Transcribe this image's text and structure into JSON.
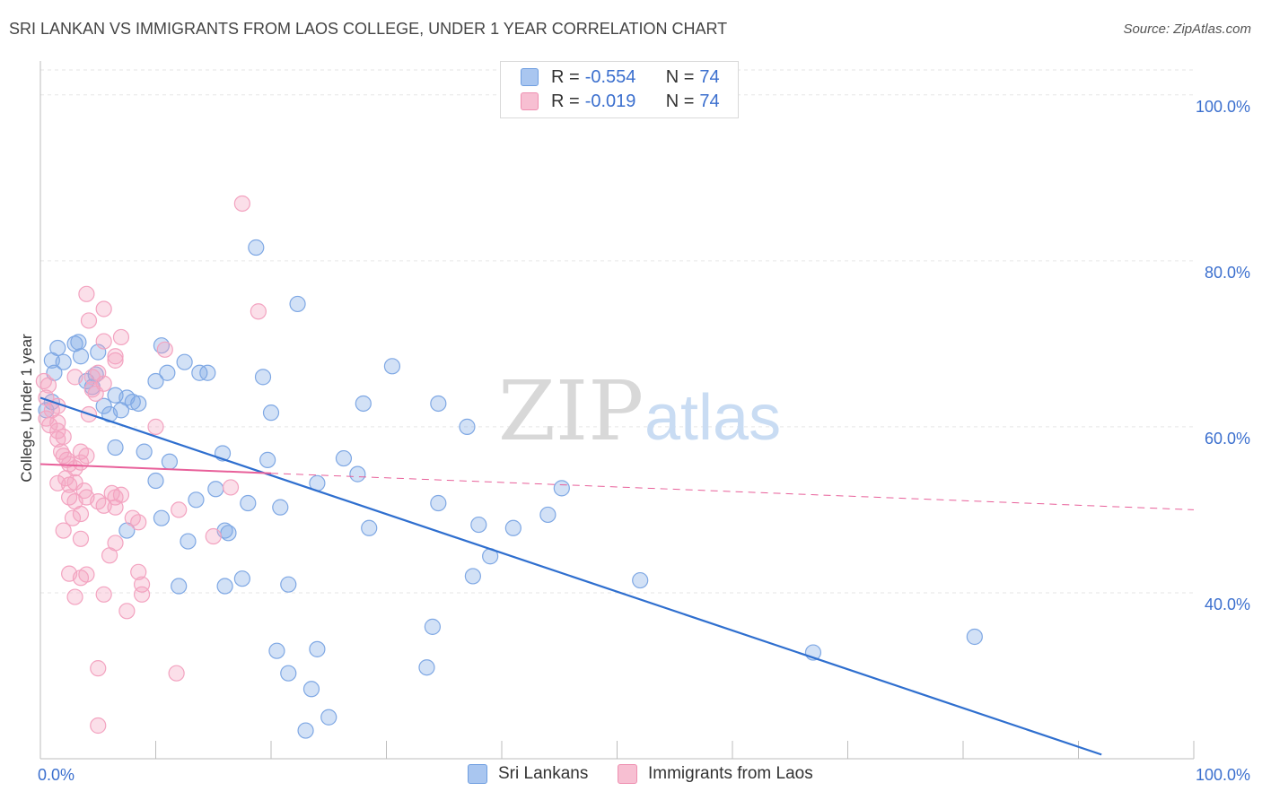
{
  "header": {
    "title": "SRI LANKAN VS IMMIGRANTS FROM LAOS COLLEGE, UNDER 1 YEAR CORRELATION CHART",
    "source": "Source: ZipAtlas.com"
  },
  "watermark": {
    "zip": "ZIP",
    "atlas": "atlas"
  },
  "stats": [
    {
      "r_label": "R =",
      "r_value": "-0.554",
      "n_label": "N =",
      "n_value": "74",
      "color": "#a9c6f0",
      "border": "#6f9ee0"
    },
    {
      "r_label": "R =",
      "r_value": "-0.019",
      "n_label": "N =",
      "n_value": "74",
      "color": "#f7bfd2",
      "border": "#ee8fb0"
    }
  ],
  "chart_data": {
    "type": "scatter",
    "title": "SRI LANKAN VS IMMIGRANTS FROM LAOS COLLEGE, UNDER 1 YEAR CORRELATION CHART",
    "xlabel": "",
    "ylabel": "College, Under 1 year",
    "xlim": [
      0,
      100
    ],
    "ylim": [
      20,
      103
    ],
    "x_tick_labels": [
      "0.0%",
      "100.0%"
    ],
    "y_ticks": [
      40,
      60,
      80,
      100
    ],
    "y_tick_labels": [
      "40.0%",
      "60.0%",
      "80.0%",
      "100.0%"
    ],
    "grid": true,
    "legend_position": "bottom-center",
    "series": [
      {
        "name": "Sri Lankans",
        "color": "#7fa8e4",
        "line_color": "#2f6fcf",
        "trend": {
          "x": [
            0,
            92
          ],
          "y": [
            63.5,
            20.5
          ],
          "dashed_extension": false
        },
        "points": [
          [
            1.0,
            68.0
          ],
          [
            1.5,
            69.5
          ],
          [
            2.0,
            67.8
          ],
          [
            1.2,
            66.5
          ],
          [
            0.5,
            62.0
          ],
          [
            1.0,
            63.0
          ],
          [
            3.0,
            70.0
          ],
          [
            3.3,
            70.2
          ],
          [
            3.5,
            68.5
          ],
          [
            5.0,
            69.0
          ],
          [
            4.0,
            65.5
          ],
          [
            4.5,
            64.8
          ],
          [
            4.8,
            66.3
          ],
          [
            5.5,
            62.5
          ],
          [
            6.0,
            61.5
          ],
          [
            6.5,
            63.8
          ],
          [
            7.0,
            62.0
          ],
          [
            7.5,
            63.5
          ],
          [
            8.0,
            63.0
          ],
          [
            8.5,
            62.8
          ],
          [
            10.0,
            65.5
          ],
          [
            10.5,
            69.8
          ],
          [
            12.5,
            67.8
          ],
          [
            13.8,
            66.5
          ],
          [
            14.5,
            66.5
          ],
          [
            11.0,
            66.5
          ],
          [
            19.3,
            66.0
          ],
          [
            22.3,
            74.8
          ],
          [
            18.7,
            81.6
          ],
          [
            20.0,
            61.7
          ],
          [
            6.5,
            57.5
          ],
          [
            9.0,
            57.0
          ],
          [
            11.2,
            55.8
          ],
          [
            15.8,
            56.8
          ],
          [
            19.7,
            56.0
          ],
          [
            10.0,
            53.5
          ],
          [
            15.2,
            52.5
          ],
          [
            24.0,
            53.2
          ],
          [
            26.3,
            56.2
          ],
          [
            27.5,
            54.3
          ],
          [
            13.5,
            51.2
          ],
          [
            18.0,
            50.8
          ],
          [
            20.8,
            50.3
          ],
          [
            10.5,
            49.0
          ],
          [
            7.5,
            47.5
          ],
          [
            16.0,
            47.5
          ],
          [
            16.3,
            47.2
          ],
          [
            12.8,
            46.2
          ],
          [
            28.5,
            47.8
          ],
          [
            34.5,
            50.8
          ],
          [
            38.0,
            48.2
          ],
          [
            41.0,
            47.8
          ],
          [
            44.0,
            49.4
          ],
          [
            39.0,
            44.4
          ],
          [
            17.5,
            41.7
          ],
          [
            21.5,
            41.0
          ],
          [
            12.0,
            40.8
          ],
          [
            16.0,
            40.8
          ],
          [
            37.5,
            42.0
          ],
          [
            52.0,
            41.5
          ],
          [
            34.5,
            62.8
          ],
          [
            28.0,
            62.8
          ],
          [
            30.5,
            67.3
          ],
          [
            37.0,
            60.0
          ],
          [
            45.2,
            52.6
          ],
          [
            34.0,
            35.9
          ],
          [
            20.5,
            33.0
          ],
          [
            24.0,
            33.2
          ],
          [
            21.5,
            30.3
          ],
          [
            23.5,
            28.4
          ],
          [
            33.5,
            31.0
          ],
          [
            25.0,
            25.0
          ],
          [
            23.0,
            23.4
          ],
          [
            67.0,
            32.8
          ],
          [
            81.0,
            34.7
          ]
        ]
      },
      {
        "name": "Immigrants from Laos",
        "color": "#f3a3c0",
        "line_color": "#e8609a",
        "trend": {
          "x": [
            0,
            100
          ],
          "y": [
            55.5,
            50.0
          ],
          "solid_until_x": 20,
          "dashed_extension": true
        },
        "points": [
          [
            0.3,
            65.5
          ],
          [
            0.7,
            65.0
          ],
          [
            0.5,
            63.5
          ],
          [
            1.0,
            62.0
          ],
          [
            0.8,
            60.2
          ],
          [
            1.5,
            60.5
          ],
          [
            1.5,
            58.5
          ],
          [
            1.8,
            57.0
          ],
          [
            1.5,
            59.5
          ],
          [
            2.0,
            56.5
          ],
          [
            2.3,
            56.0
          ],
          [
            2.5,
            55.5
          ],
          [
            2.2,
            53.8
          ],
          [
            3.0,
            53.3
          ],
          [
            2.5,
            53.0
          ],
          [
            1.5,
            53.2
          ],
          [
            3.0,
            55.0
          ],
          [
            3.5,
            57.0
          ],
          [
            4.0,
            56.5
          ],
          [
            3.5,
            55.7
          ],
          [
            4.0,
            51.5
          ],
          [
            3.0,
            51.0
          ],
          [
            2.5,
            51.5
          ],
          [
            2.8,
            49.0
          ],
          [
            3.5,
            49.5
          ],
          [
            5.0,
            51.0
          ],
          [
            5.5,
            50.5
          ],
          [
            6.5,
            51.5
          ],
          [
            6.2,
            52.0
          ],
          [
            7.0,
            51.8
          ],
          [
            6.5,
            50.3
          ],
          [
            8.0,
            49.0
          ],
          [
            8.5,
            48.5
          ],
          [
            2.0,
            47.5
          ],
          [
            3.5,
            46.5
          ],
          [
            6.5,
            46.0
          ],
          [
            6.0,
            44.5
          ],
          [
            8.5,
            42.5
          ],
          [
            2.5,
            42.3
          ],
          [
            3.5,
            41.8
          ],
          [
            4.0,
            42.2
          ],
          [
            8.8,
            41.0
          ],
          [
            5.5,
            39.8
          ],
          [
            8.8,
            39.8
          ],
          [
            3.0,
            39.5
          ],
          [
            7.5,
            37.8
          ],
          [
            15.0,
            46.8
          ],
          [
            16.5,
            52.7
          ],
          [
            5.5,
            74.2
          ],
          [
            4.0,
            76.0
          ],
          [
            4.2,
            72.8
          ],
          [
            7.0,
            70.8
          ],
          [
            5.5,
            70.3
          ],
          [
            10.8,
            69.3
          ],
          [
            18.9,
            73.9
          ],
          [
            17.5,
            86.9
          ],
          [
            6.5,
            68.0
          ],
          [
            5.0,
            66.5
          ],
          [
            4.5,
            66.0
          ],
          [
            4.5,
            64.5
          ],
          [
            5.5,
            65.2
          ],
          [
            3.0,
            66.0
          ],
          [
            4.2,
            61.5
          ],
          [
            10.0,
            60.0
          ],
          [
            1.5,
            62.5
          ],
          [
            0.5,
            61.0
          ],
          [
            4.8,
            64.0
          ],
          [
            6.5,
            68.5
          ],
          [
            11.8,
            30.3
          ],
          [
            5.0,
            30.9
          ],
          [
            5.0,
            24.0
          ],
          [
            12.0,
            50.0
          ],
          [
            2.0,
            58.8
          ],
          [
            3.8,
            52.3
          ]
        ]
      }
    ]
  },
  "legend": {
    "items": [
      {
        "label": "Sri Lankans",
        "color": "#a9c6f0",
        "border": "#6f9ee0"
      },
      {
        "label": "Immigrants from Laos",
        "color": "#f7bfd2",
        "border": "#ee8fb0"
      }
    ]
  }
}
